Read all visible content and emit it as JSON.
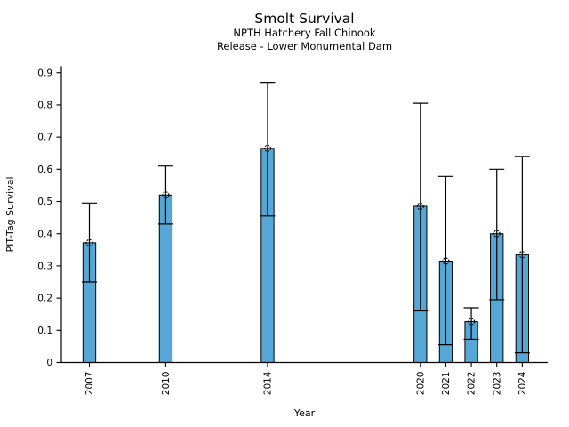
{
  "figure": {
    "background": "#ffffff"
  },
  "chart_data": {
    "type": "bar",
    "title": "Smolt Survival",
    "subtitle_line1": "NPTH Hatchery Fall Chinook",
    "subtitle_line2": "Release - Lower Monumental Dam",
    "xlabel": "Year",
    "ylabel": "PIT-Tag Survival",
    "x": [
      2007,
      2010,
      2014,
      2020,
      2021,
      2022,
      2023,
      2024
    ],
    "x_tick_labels": [
      "2007",
      "2010",
      "2014",
      "2020",
      "2021",
      "2022",
      "2023",
      "2024"
    ],
    "values": [
      0.372,
      0.52,
      0.665,
      0.485,
      0.315,
      0.127,
      0.4,
      0.335
    ],
    "error_low": [
      0.25,
      0.43,
      0.455,
      0.16,
      0.055,
      0.072,
      0.195,
      0.03
    ],
    "error_high": [
      0.495,
      0.61,
      0.87,
      0.805,
      0.578,
      0.17,
      0.6,
      0.64
    ],
    "yticks": [
      0,
      0.1,
      0.2,
      0.3,
      0.4,
      0.5,
      0.6,
      0.7,
      0.8,
      0.9
    ],
    "ytick_labels": [
      "0",
      "0.1",
      "0.2",
      "0.3",
      "0.4",
      "0.5",
      "0.6",
      "0.7",
      "0.8",
      "0.9"
    ],
    "ylim": [
      0,
      0.92
    ],
    "xlim": [
      2005.9,
      2025.0
    ],
    "bar_width_years": 0.5,
    "bar_color": "#56a7d5",
    "bar_edge_color": "#000000",
    "error_color": "#000000",
    "marker": "open-circle",
    "grid": false,
    "legend": null
  }
}
